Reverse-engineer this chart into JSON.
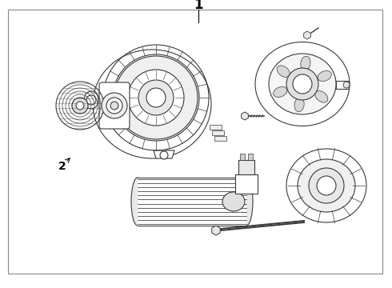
{
  "title": "1",
  "label2": "2",
  "bg_color": "#ffffff",
  "line_color": "#3a3a3a",
  "border_color": "#888888",
  "fig_width": 4.9,
  "fig_height": 3.6,
  "dpi": 100
}
